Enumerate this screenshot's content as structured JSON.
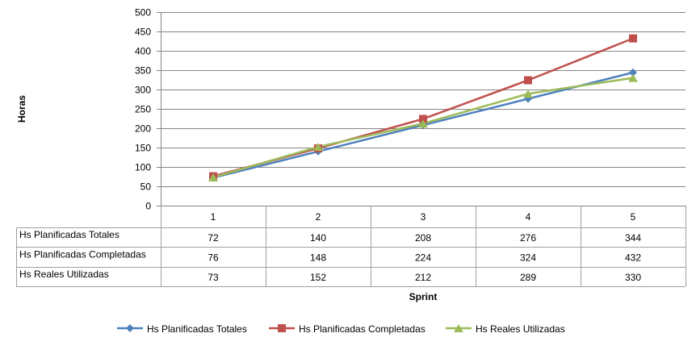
{
  "chart_data": {
    "type": "line",
    "title": "",
    "xlabel": "Sprint",
    "ylabel": "Horas",
    "categories": [
      "1",
      "2",
      "3",
      "4",
      "5"
    ],
    "yticks": [
      "0",
      "50",
      "100",
      "150",
      "200",
      "250",
      "300",
      "350",
      "400",
      "450",
      "500"
    ],
    "ylim": [
      0,
      500
    ],
    "grid": true,
    "legend_position": "bottom",
    "series": [
      {
        "name": "Hs Planificadas Totales",
        "values": [
          72,
          140,
          208,
          276,
          344
        ],
        "color": "#4F81BD",
        "marker": "diamond"
      },
      {
        "name": "Hs Planificadas Completadas",
        "values": [
          76,
          148,
          224,
          324,
          432
        ],
        "color": "#C0504D",
        "marker": "square"
      },
      {
        "name": "Hs Reales Utilizadas",
        "values": [
          73,
          152,
          212,
          289,
          330
        ],
        "color": "#9BBB59",
        "marker": "triangle"
      }
    ]
  }
}
